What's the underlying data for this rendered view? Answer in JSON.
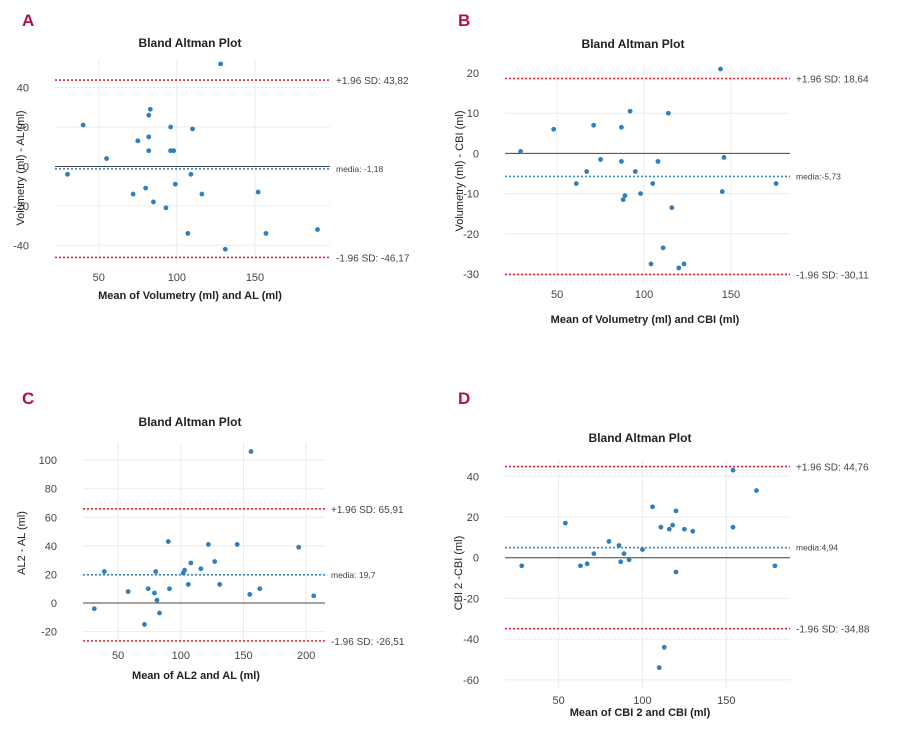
{
  "colors": {
    "panel_letter": "#b5123e",
    "point": "#2e7fc0",
    "limit_line": "#e8212e",
    "mean_line": "#3c84d6",
    "zero_line": "#444444",
    "grid": "#ebebeb",
    "tick_text": "#444444",
    "title_text": "#222222"
  },
  "chart_data": [
    {
      "panel": "A",
      "type": "scatter",
      "title": "Bland Altman Plot",
      "xlabel": "Mean of Volumetry (ml) and AL (ml)",
      "ylabel": "Volumetry (ml) - AL (ml)",
      "xlim": [
        22,
        198
      ],
      "ylim": [
        -50,
        54
      ],
      "xticks": [
        50,
        100,
        150
      ],
      "yticks": [
        -40,
        -20,
        0,
        20,
        40
      ],
      "mean_line": {
        "value": -1.18,
        "label": "media: -1,18"
      },
      "upper_limit": {
        "value": 43.82,
        "label": "+1.96 SD: 43,82"
      },
      "lower_limit": {
        "value": -46.17,
        "label": "-1.96 SD: -46,17"
      },
      "points": [
        [
          30,
          -4
        ],
        [
          40,
          21
        ],
        [
          55,
          4
        ],
        [
          72,
          -14
        ],
        [
          75,
          13
        ],
        [
          80,
          -11
        ],
        [
          82,
          26
        ],
        [
          82,
          15
        ],
        [
          82,
          8
        ],
        [
          83,
          29
        ],
        [
          85,
          -18
        ],
        [
          93,
          -21
        ],
        [
          96,
          20
        ],
        [
          96,
          8
        ],
        [
          98,
          8
        ],
        [
          99,
          -9
        ],
        [
          107,
          -34
        ],
        [
          109,
          -4
        ],
        [
          110,
          19
        ],
        [
          116,
          -14
        ],
        [
          128,
          52
        ],
        [
          131,
          -42
        ],
        [
          152,
          -13
        ],
        [
          157,
          -34
        ],
        [
          190,
          -32
        ]
      ]
    },
    {
      "panel": "B",
      "type": "scatter",
      "title": "Bland Altman Plot",
      "xlabel": "Mean of Volumetry (ml) and CBI (ml)",
      "ylabel": "Volumetry (ml) - CBI (ml)",
      "xlim": [
        20,
        184
      ],
      "ylim": [
        -32,
        22
      ],
      "xticks": [
        50,
        100,
        150
      ],
      "yticks": [
        -30,
        -20,
        -10,
        0,
        10,
        20
      ],
      "mean_line": {
        "value": -5.73,
        "label": "media:-5,73"
      },
      "upper_limit": {
        "value": 18.64,
        "label": "+1.96 SD: 18,64"
      },
      "lower_limit": {
        "value": -30.11,
        "label": "-1.96 SD: -30,11"
      },
      "points": [
        [
          29,
          0.5
        ],
        [
          48,
          6
        ],
        [
          61,
          -7.5
        ],
        [
          67,
          -4.5
        ],
        [
          71,
          7
        ],
        [
          75,
          -1.5
        ],
        [
          87,
          6.5
        ],
        [
          87,
          -2
        ],
        [
          88,
          -11.5
        ],
        [
          89,
          -10.5
        ],
        [
          92,
          10.5
        ],
        [
          95,
          -4.5
        ],
        [
          98,
          -10
        ],
        [
          104,
          -27.5
        ],
        [
          105,
          -7.5
        ],
        [
          108,
          -2
        ],
        [
          111,
          -23.5
        ],
        [
          114,
          10
        ],
        [
          116,
          -13.5
        ],
        [
          120,
          -28.5
        ],
        [
          123,
          -27.5
        ],
        [
          144,
          21
        ],
        [
          145,
          -9.5
        ],
        [
          146,
          -1
        ],
        [
          176,
          -7.5
        ]
      ]
    },
    {
      "panel": "C",
      "type": "scatter",
      "title": "Bland Altman Plot",
      "xlabel": "Mean of AL2 and AL (ml)",
      "ylabel": "AL2 - AL (ml)",
      "xlim": [
        22,
        215
      ],
      "ylim": [
        -28,
        112
      ],
      "xticks": [
        50,
        100,
        150,
        200
      ],
      "yticks": [
        -20,
        0,
        20,
        40,
        60,
        80,
        100
      ],
      "mean_line": {
        "value": 19.7,
        "label": "media: 19,7"
      },
      "upper_limit": {
        "value": 65.91,
        "label": "+1.96 SD: 65,91"
      },
      "lower_limit": {
        "value": -26.51,
        "label": "-1.96 SD: -26,51"
      },
      "points": [
        [
          31,
          -4
        ],
        [
          39,
          22
        ],
        [
          58,
          8
        ],
        [
          71,
          -15
        ],
        [
          74,
          10
        ],
        [
          79,
          7
        ],
        [
          80,
          22
        ],
        [
          81,
          2
        ],
        [
          83,
          -7
        ],
        [
          90,
          43
        ],
        [
          91,
          10
        ],
        [
          102,
          21
        ],
        [
          103,
          23
        ],
        [
          106,
          13
        ],
        [
          108,
          28
        ],
        [
          116,
          24
        ],
        [
          122,
          41
        ],
        [
          127,
          29
        ],
        [
          131,
          13
        ],
        [
          145,
          41
        ],
        [
          155,
          6
        ],
        [
          156,
          106
        ],
        [
          163,
          10
        ],
        [
          194,
          39
        ],
        [
          206,
          5
        ]
      ]
    },
    {
      "panel": "D",
      "type": "scatter",
      "title": "Bland Altman Plot",
      "xlabel": "Mean of CBI 2 and CBI (ml)",
      "ylabel": "CBI 2 -CBI (ml)",
      "xlim": [
        18,
        188
      ],
      "ylim": [
        -64,
        48
      ],
      "xticks": [
        50,
        100,
        150
      ],
      "yticks": [
        -60,
        -40,
        -20,
        0,
        20,
        40
      ],
      "mean_line": {
        "value": 4.94,
        "label": "media:4,94"
      },
      "upper_limit": {
        "value": 44.76,
        "label": "+1.96 SD: 44,76"
      },
      "lower_limit": {
        "value": -34.88,
        "label": "-1.96 SD: -34,88"
      },
      "points": [
        [
          28,
          -4
        ],
        [
          54,
          17
        ],
        [
          63,
          -4
        ],
        [
          67,
          -3
        ],
        [
          71,
          2
        ],
        [
          80,
          8
        ],
        [
          86,
          6
        ],
        [
          87,
          -2
        ],
        [
          89,
          2
        ],
        [
          92,
          -1
        ],
        [
          100,
          4
        ],
        [
          106,
          25
        ],
        [
          110,
          -54
        ],
        [
          111,
          15
        ],
        [
          113,
          -44
        ],
        [
          116,
          14
        ],
        [
          118,
          16
        ],
        [
          120,
          -7
        ],
        [
          120,
          23
        ],
        [
          125,
          14
        ],
        [
          130,
          13
        ],
        [
          154,
          43
        ],
        [
          154,
          15
        ],
        [
          168,
          33
        ],
        [
          179,
          -4
        ]
      ]
    }
  ]
}
